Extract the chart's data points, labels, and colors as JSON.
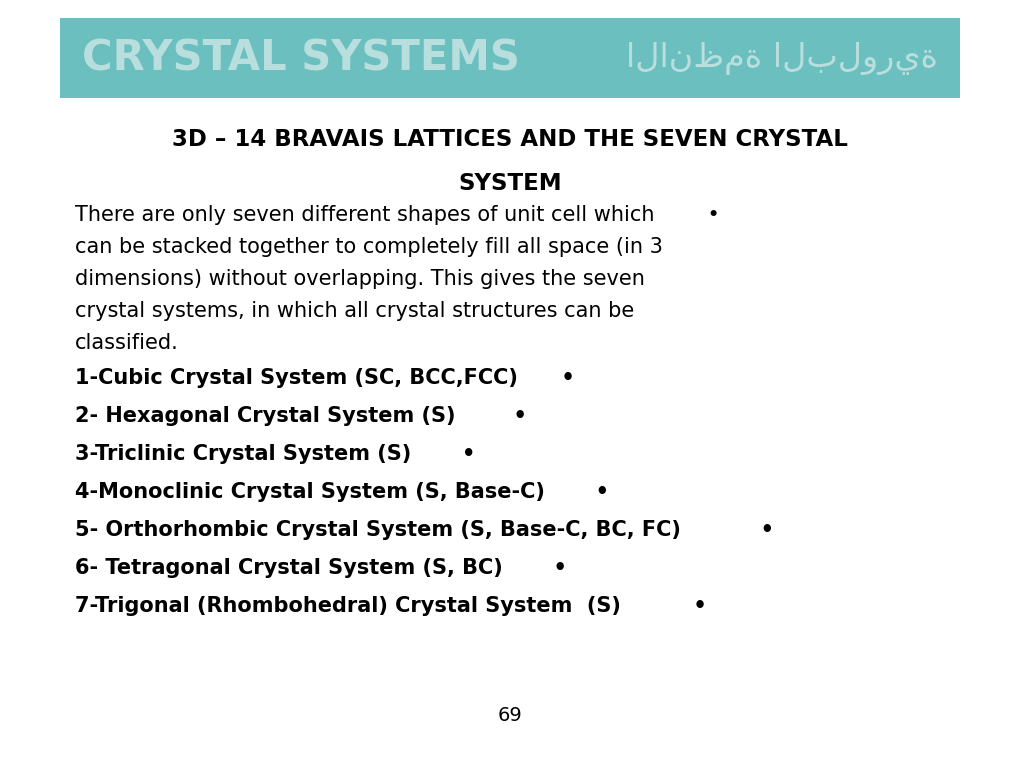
{
  "bg_color": "#ffffff",
  "header_bg_color": "#6bbfbf",
  "header_text_left": "CRYSTAL SYSTEMS",
  "header_text_right": "الانظمة البلورية",
  "header_text_color": "#b8dede",
  "subtitle_line1": "3D – 14 BRAVAIS LATTICES AND THE SEVEN CRYSTAL",
  "subtitle_line2": "SYSTEM",
  "subtitle_color": "#000000",
  "body_lines": [
    "There are only seven different shapes of unit cell which        •",
    "can be stacked together to completely fill all space (in 3",
    "dimensions) without overlapping. This gives the seven",
    "crystal systems, in which all crystal structures can be",
    "classified."
  ],
  "list_items": [
    "1-Cubic Crystal System (SC, BCC,FCC)      •",
    "2- Hexagonal Crystal System (S)        •",
    "3-Triclinic Crystal System (S)       •",
    "4-Monoclinic Crystal System (S, Base-C)       •",
    "5- Orthorhombic Crystal System (S, Base-C, BC, FC)           •",
    "6- Tetragonal Crystal System (S, BC)       •",
    "7-Trigonal (Rhombohedral) Crystal System  (S)          •"
  ],
  "page_number": "69",
  "figsize": [
    10.2,
    7.65
  ],
  "dpi": 100
}
